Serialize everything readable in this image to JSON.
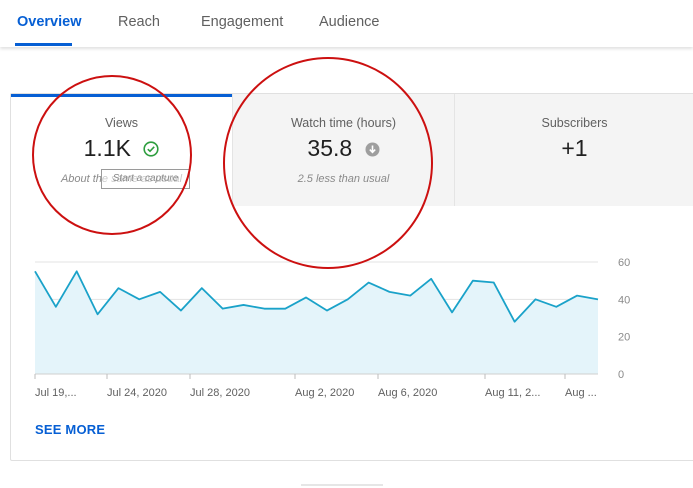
{
  "tabs": [
    {
      "label": "Overview",
      "active": true
    },
    {
      "label": "Reach",
      "active": false
    },
    {
      "label": "Engagement",
      "active": false
    },
    {
      "label": "Audience",
      "active": false
    }
  ],
  "metrics": [
    {
      "label": "Views",
      "value": "1.1K",
      "note": "About the same as usual",
      "icon": "check-circle-icon"
    },
    {
      "label": "Watch time (hours)",
      "value": "35.8",
      "note": "2.5 less than usual",
      "icon": "down-arrow-circle-icon"
    },
    {
      "label": "Subscribers",
      "value": "+1",
      "note": ""
    }
  ],
  "tooltip_text": "Start a capture",
  "see_more_label": "SEE MORE",
  "colors": {
    "accent": "#065fd4",
    "line": "#1aa2c9",
    "fill": "#e4f4fa",
    "annotation": "#cc1010",
    "check": "#2e9e3f"
  },
  "chart_data": {
    "type": "area",
    "series": [
      {
        "values": [
          55,
          36,
          55,
          32,
          46,
          40,
          44,
          34,
          46,
          35,
          37,
          35,
          35,
          41,
          34,
          40,
          49,
          44,
          42,
          51,
          33,
          50,
          49,
          28,
          40,
          36,
          42,
          40
        ]
      }
    ],
    "x_tick_labels": [
      "Jul 19,...",
      "Jul 24, 2020",
      "Jul 28, 2020",
      "Aug 2, 2020",
      "Aug 6, 2020",
      "Aug 11, 2...",
      "Aug ..."
    ],
    "y_tick_labels": [
      "60",
      "40",
      "20",
      "0"
    ],
    "ylim": [
      0,
      60
    ],
    "grid": true
  }
}
